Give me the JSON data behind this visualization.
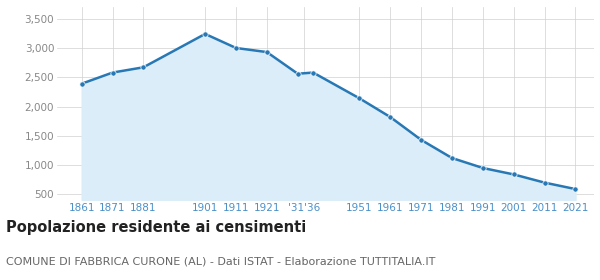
{
  "years": [
    1861,
    1871,
    1881,
    1901,
    1911,
    1921,
    1931,
    1936,
    1951,
    1961,
    1971,
    1981,
    1991,
    2001,
    2011,
    2021
  ],
  "population": [
    2390,
    2580,
    2670,
    3240,
    3000,
    2930,
    2560,
    2580,
    2140,
    1820,
    1430,
    1120,
    950,
    840,
    700,
    590
  ],
  "line_color": "#2878b5",
  "fill_color": "#daedf8",
  "marker_color": "#2878b5",
  "grid_color": "#d0d0d0",
  "bg_color": "#ffffff",
  "ylim": [
    400,
    3700
  ],
  "yticks": [
    500,
    1000,
    1500,
    2000,
    2500,
    3000,
    3500
  ],
  "ytick_labels": [
    "500",
    "1,000",
    "1,500",
    "2,000",
    "2,500",
    "3,000",
    "3,500"
  ],
  "x_tick_pos": [
    1861,
    1871,
    1881,
    1901,
    1911,
    1921,
    1933,
    1951,
    1961,
    1971,
    1981,
    1991,
    2001,
    2011,
    2021
  ],
  "x_tick_lab": [
    "1861",
    "1871",
    "1881",
    "1901",
    "1911",
    "1921",
    "'31'36",
    "1951",
    "1961",
    "1971",
    "1981",
    "1991",
    "2001",
    "2011",
    "2021"
  ],
  "xlim": [
    1853,
    2027
  ],
  "title": "Popolazione residente ai censimenti",
  "subtitle": "COMUNE DI FABBRICA CURONE (AL) - Dati ISTAT - Elaborazione TUTTITALIA.IT",
  "title_fontsize": 10.5,
  "subtitle_fontsize": 8,
  "tick_color": "#4a90c8",
  "ytick_color": "#888888",
  "tick_fontsize": 7.5,
  "line_width": 1.8,
  "marker_size": 3.8
}
